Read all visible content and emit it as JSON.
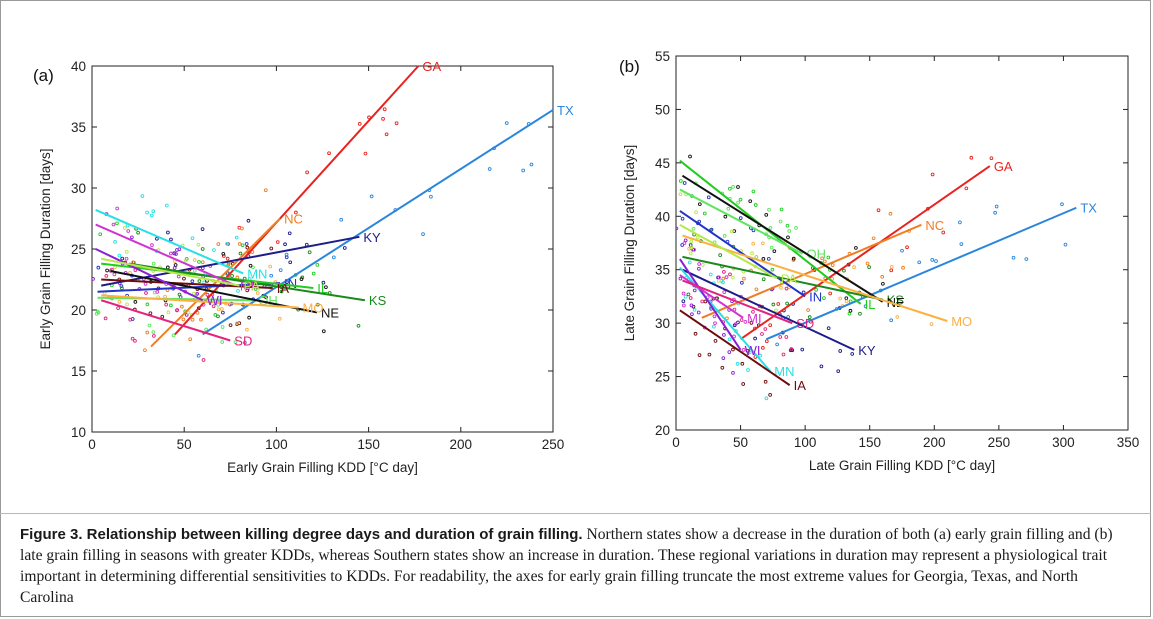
{
  "figure": {
    "caption_title": "Figure 3. Relationship between killing degree days and duration of grain filling.",
    "caption_text": " Northern states show a decrease in the duration of both (a) early grain filling and (b) late grain filling in seasons with greater KDDs, whereas Southern states show an increase in duration. These regional variations in duration may represent a physiological trait important in determining differential sensitivities to KDDs. For readability, the axes for early grain filling truncate the most extreme values for Georgia, Texas, and North Carolina"
  },
  "chart_data": [
    {
      "type": "scatter",
      "panel_label": "(a)",
      "xlabel": "Early Grain Filling KDD [°C day]",
      "ylabel": "Early Grain Filling Duration [days]",
      "xlim": [
        0,
        250
      ],
      "ylim": [
        10,
        40
      ],
      "xticks": [
        0,
        50,
        100,
        150,
        200,
        250
      ],
      "yticks": [
        10,
        15,
        20,
        25,
        30,
        35,
        40
      ],
      "grid": false,
      "fits": [
        {
          "name": "GA",
          "color": "#e8231f",
          "x": [
            45,
            177
          ],
          "y": [
            18.0,
            40.0
          ]
        },
        {
          "name": "TX",
          "color": "#2a86dd",
          "x": [
            60,
            250
          ],
          "y": [
            18.0,
            36.4
          ]
        },
        {
          "name": "NC",
          "color": "#f07d23",
          "x": [
            32,
            102
          ],
          "y": [
            17.0,
            27.5
          ]
        },
        {
          "name": "KY",
          "color": "#1c1c8a",
          "x": [
            5,
            145
          ],
          "y": [
            22.0,
            26.0
          ]
        },
        {
          "name": "MN",
          "color": "#27e0e4",
          "x": [
            2,
            82
          ],
          "y": [
            28.2,
            23.0
          ]
        },
        {
          "name": "IN",
          "color": "#2233c8",
          "x": [
            3,
            102
          ],
          "y": [
            21.5,
            22.2
          ]
        },
        {
          "name": "IL",
          "color": "#21cc21",
          "x": [
            5,
            120
          ],
          "y": [
            23.8,
            21.8
          ]
        },
        {
          "name": "KS",
          "color": "#1a8a1a",
          "x": [
            20,
            148
          ],
          "y": [
            23.8,
            20.8
          ]
        },
        {
          "name": "IA",
          "color": "#6d0d0d",
          "x": [
            5,
            98
          ],
          "y": [
            22.5,
            21.8
          ]
        },
        {
          "name": "OH",
          "color": "#5fe55f",
          "x": [
            3,
            88
          ],
          "y": [
            21.0,
            20.8
          ]
        },
        {
          "name": "NE",
          "color": "#111111",
          "x": [
            10,
            122
          ],
          "y": [
            23.2,
            19.8
          ]
        },
        {
          "name": "MO",
          "color": "#fcb040",
          "x": [
            5,
            112
          ],
          "y": [
            21.2,
            20.2
          ]
        },
        {
          "name": "WI",
          "color": "#8a1fd6",
          "x": [
            2,
            60
          ],
          "y": [
            25.0,
            20.8
          ]
        },
        {
          "name": "MI",
          "color": "#d133d1",
          "x": [
            2,
            78
          ],
          "y": [
            27.0,
            22.0
          ]
        },
        {
          "name": "PA",
          "color": "#b6e84a",
          "x": [
            5,
            80
          ],
          "y": [
            24.2,
            22.0
          ]
        },
        {
          "name": "SD",
          "color": "#e3237f",
          "x": [
            5,
            75
          ],
          "y": [
            20.8,
            17.5
          ]
        }
      ]
    },
    {
      "type": "scatter",
      "panel_label": "(b)",
      "xlabel": "Late Grain Filling KDD [°C day]",
      "ylabel": "Late Grain Filling Duration [days]",
      "xlim": [
        0,
        350
      ],
      "ylim": [
        20,
        55
      ],
      "xticks": [
        0,
        50,
        100,
        150,
        200,
        250,
        300,
        350
      ],
      "yticks": [
        20,
        25,
        30,
        35,
        40,
        45,
        50,
        55
      ],
      "grid": false,
      "fits": [
        {
          "name": "GA",
          "color": "#e8231f",
          "x": [
            50,
            243
          ],
          "y": [
            28.5,
            44.7
          ]
        },
        {
          "name": "TX",
          "color": "#2a86dd",
          "x": [
            70,
            310
          ],
          "y": [
            28.5,
            40.8
          ]
        },
        {
          "name": "NC",
          "color": "#f07d23",
          "x": [
            20,
            190
          ],
          "y": [
            30.5,
            39.2
          ]
        },
        {
          "name": "KY",
          "color": "#1c1c8a",
          "x": [
            5,
            138
          ],
          "y": [
            35.0,
            27.5
          ]
        },
        {
          "name": "MN",
          "color": "#27e0e4",
          "x": [
            3,
            73
          ],
          "y": [
            35.2,
            25.5
          ]
        },
        {
          "name": "IN",
          "color": "#2233c8",
          "x": [
            3,
            100
          ],
          "y": [
            40.5,
            32.5
          ]
        },
        {
          "name": "IL",
          "color": "#21cc21",
          "x": [
            3,
            143
          ],
          "y": [
            45.2,
            31.8
          ]
        },
        {
          "name": "KS",
          "color": "#1a8a1a",
          "x": [
            5,
            160
          ],
          "y": [
            36.2,
            32.2
          ]
        },
        {
          "name": "IA",
          "color": "#6d0d0d",
          "x": [
            3,
            88
          ],
          "y": [
            31.2,
            24.2
          ]
        },
        {
          "name": "OH",
          "color": "#5fe55f",
          "x": [
            3,
            98
          ],
          "y": [
            42.5,
            36.5
          ]
        },
        {
          "name": "NE",
          "color": "#111111",
          "x": [
            5,
            160
          ],
          "y": [
            43.8,
            32.0
          ]
        },
        {
          "name": "MO",
          "color": "#fcb040",
          "x": [
            5,
            210
          ],
          "y": [
            38.2,
            30.2
          ]
        },
        {
          "name": "WI",
          "color": "#8a1fd6",
          "x": [
            3,
            50
          ],
          "y": [
            36.0,
            27.5
          ]
        },
        {
          "name": "MI",
          "color": "#d133d1",
          "x": [
            3,
            52
          ],
          "y": [
            34.5,
            30.5
          ]
        },
        {
          "name": "PA",
          "color": "#b6e84a",
          "x": [
            3,
            78
          ],
          "y": [
            39.2,
            34.2
          ]
        },
        {
          "name": "SD",
          "color": "#e3237f",
          "x": [
            5,
            90
          ],
          "y": [
            34.0,
            30.0
          ]
        }
      ]
    }
  ]
}
